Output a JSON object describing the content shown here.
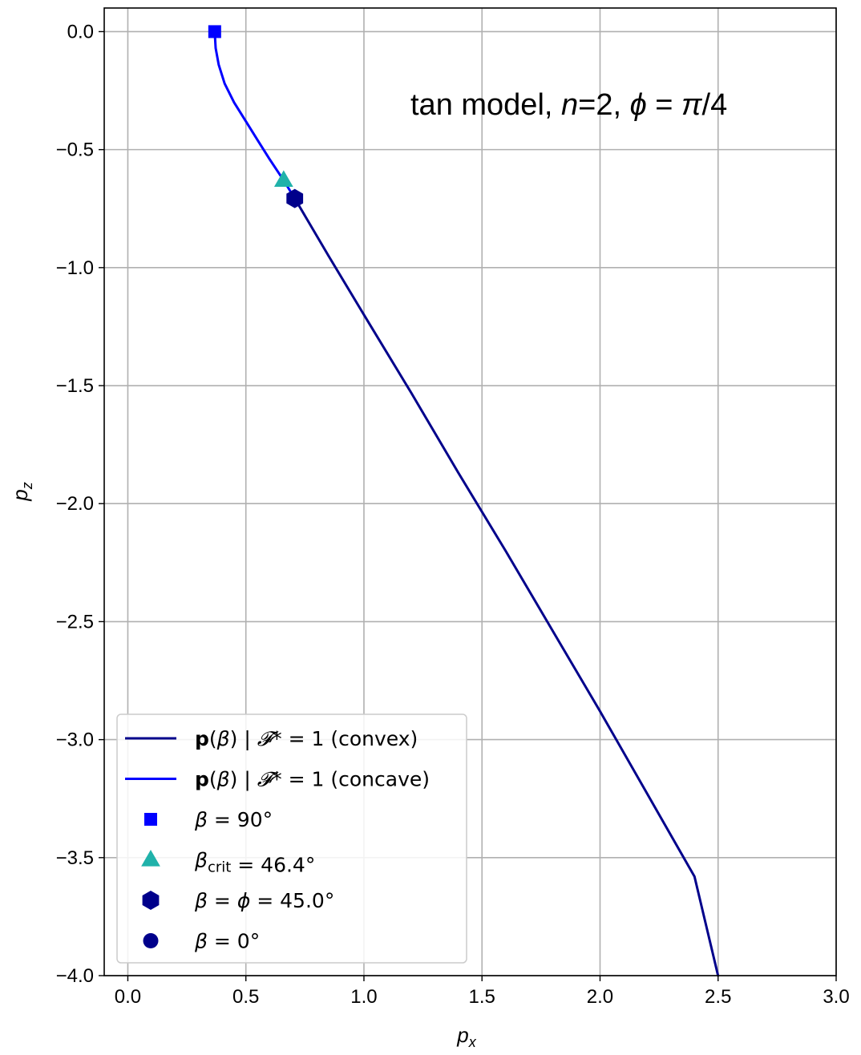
{
  "chart_data": {
    "type": "line",
    "annotation": {
      "prefix": "tan model, ",
      "n_sym": "n",
      "n_eq": "=2, ",
      "phi_sym": "ϕ",
      "phi_eq": " = ",
      "pi_sym": "π",
      "pi_tail": "/4"
    },
    "xlabel": "p",
    "xlabel_sub": "x",
    "ylabel": "p",
    "ylabel_sub": "z",
    "xlim": [
      -0.1,
      3.0
    ],
    "ylim": [
      -4.0,
      0.1
    ],
    "xticks": [
      0.0,
      0.5,
      1.0,
      1.5,
      2.0,
      2.5,
      3.0
    ],
    "xtick_labels": [
      "0.0",
      "0.5",
      "1.0",
      "1.5",
      "2.0",
      "2.5",
      "3.0"
    ],
    "yticks": [
      0.0,
      -0.5,
      -1.0,
      -1.5,
      -2.0,
      -2.5,
      -3.0,
      -3.5,
      -4.0
    ],
    "ytick_labels": [
      "0.0",
      "−0.5",
      "−1.0",
      "−1.5",
      "−2.0",
      "−2.5",
      "−3.0",
      "−3.5",
      "−4.0"
    ],
    "grid": true,
    "legend_placement": "lower-left",
    "series": [
      {
        "name": "p(β) | 𝓕* = 1 (convex)",
        "color": "#00008b",
        "x": [
          0.707,
          0.85,
          1.0,
          1.2,
          1.4,
          1.6,
          1.8,
          2.0,
          2.2,
          2.4,
          2.5
        ],
        "y": [
          -0.707,
          -0.95,
          -1.2,
          -1.53,
          -1.87,
          -2.2,
          -2.54,
          -2.88,
          -3.23,
          -3.58,
          -4.0
        ]
      },
      {
        "name": "p(β) | 𝓕* = 1 (concave)",
        "color": "#0000ff",
        "x": [
          0.368,
          0.372,
          0.385,
          0.41,
          0.45,
          0.5,
          0.55,
          0.6,
          0.64,
          0.66,
          0.707
        ],
        "y": [
          0.0,
          -0.07,
          -0.14,
          -0.22,
          -0.3,
          -0.38,
          -0.46,
          -0.54,
          -0.6,
          -0.63,
          -0.707
        ]
      }
    ],
    "markers": [
      {
        "name": "β = 90°",
        "shape": "square",
        "color": "#0000ff",
        "x": 0.368,
        "y": 0.0
      },
      {
        "name": "βcrit = 46.4°",
        "shape": "triangle",
        "color": "#20b2aa",
        "x": 0.66,
        "y": -0.63
      },
      {
        "name": "β = ϕ = 45.0°",
        "shape": "hexagon",
        "color": "#00008b",
        "x": 0.707,
        "y": -0.707
      },
      {
        "name": "β = 0°",
        "shape": "circle",
        "color": "#00008b",
        "x": 2.5,
        "y": -4.0
      }
    ],
    "legend": [
      {
        "kind": "line",
        "color": "#00008b",
        "parts": [
          [
            "p",
            "bold"
          ],
          [
            "(",
            ""
          ],
          [
            "β",
            "it"
          ],
          [
            ") | ",
            ""
          ],
          [
            "𝓕",
            "it"
          ],
          [
            "* = 1 (convex)",
            ""
          ]
        ]
      },
      {
        "kind": "line",
        "color": "#0000ff",
        "parts": [
          [
            "p",
            "bold"
          ],
          [
            "(",
            ""
          ],
          [
            "β",
            "it"
          ],
          [
            ") | ",
            ""
          ],
          [
            "𝓕",
            "it"
          ],
          [
            "* = 1 (concave)",
            ""
          ]
        ]
      },
      {
        "kind": "square",
        "color": "#0000ff",
        "parts": [
          [
            "β",
            "it"
          ],
          [
            " = 90°",
            ""
          ]
        ]
      },
      {
        "kind": "triangle",
        "color": "#20b2aa",
        "parts": [
          [
            "β",
            "it"
          ],
          [
            "crit",
            "sub"
          ],
          [
            " = 46.4°",
            ""
          ]
        ]
      },
      {
        "kind": "hexagon",
        "color": "#00008b",
        "parts": [
          [
            "β",
            "it"
          ],
          [
            " = ",
            ""
          ],
          [
            "ϕ",
            "it"
          ],
          [
            " = 45.0°",
            ""
          ]
        ]
      },
      {
        "kind": "circle",
        "color": "#00008b",
        "parts": [
          [
            "β",
            "it"
          ],
          [
            " = 0°",
            ""
          ]
        ]
      }
    ]
  }
}
